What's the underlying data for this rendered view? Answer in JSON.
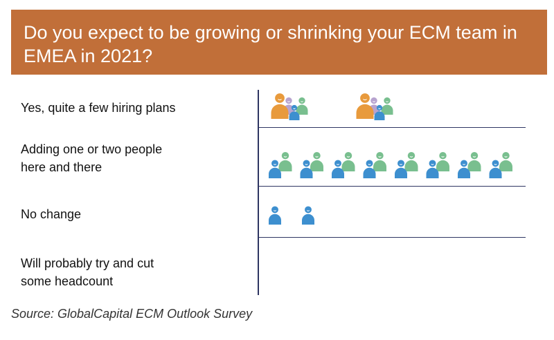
{
  "header": {
    "title": "Do you expect to be growing or shrinking your ECM team in EMEA in 2021?"
  },
  "chart_data": {
    "type": "pictogram",
    "title": "Do you expect to be growing or shrinking your ECM team in EMEA in 2021?",
    "categories": [
      "Yes, quite a few hiring plans",
      "Adding one or two people\nhere and there",
      "No change",
      "Will probably try and cut\nsome headcount"
    ],
    "icon_groups": [
      {
        "category": "Yes, quite a few hiring plans",
        "icon": "large-team-icon",
        "count": 2
      },
      {
        "category": "Adding one or two people\nhere and there",
        "icon": "pair-people-icon",
        "count": 8
      },
      {
        "category": "No change",
        "icon": "single-person-icon",
        "count": 2
      },
      {
        "category": "Will probably try and cut\nsome headcount",
        "icon": "none",
        "count": 0
      }
    ],
    "colors": {
      "orange": "#e89a3c",
      "lilac": "#b7a3cf",
      "green": "#79bf8f",
      "blue": "#3d8fcf",
      "banner": "#c16f39",
      "rules": "#2d3461"
    }
  },
  "footer": {
    "source": "Source: GlobalCapital ECM Outlook Survey"
  }
}
